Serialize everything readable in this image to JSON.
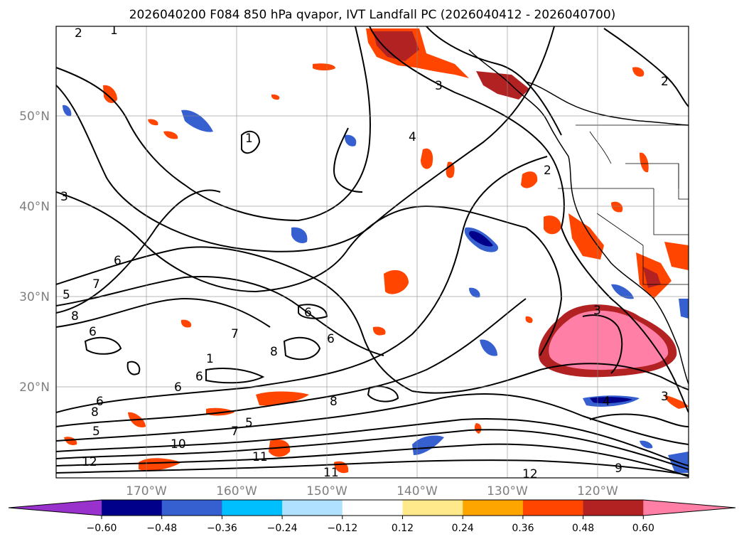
{
  "title": "2026040200 F084 850 hPa qvapor, IVT Landfall PC (2026040412 - 2026040700)",
  "latitudes": [
    "50°N",
    "40°N",
    "30°N",
    "20°N"
  ],
  "longitudes": [
    "170°W",
    "160°W",
    "150°W",
    "140°W",
    "130°W",
    "120°W"
  ],
  "colorbar": {
    "ticks": [
      "−0.60",
      "−0.48",
      "−0.36",
      "−0.24",
      "−0.12",
      "0.12",
      "0.24",
      "0.36",
      "0.48",
      "0.60"
    ],
    "colors": [
      "#9932cc",
      "#00008b",
      "#3660d0",
      "#00bfff",
      "#b0e2ff",
      "#ffffff",
      "#ffe98a",
      "#ffa500",
      "#ff4500",
      "#b22222",
      "#ff7fa6"
    ]
  },
  "contour_labels": [
    "2",
    "1",
    "1",
    "3",
    "4",
    "2",
    "3",
    "2",
    "5",
    "7",
    "8",
    "6",
    "6",
    "6",
    "7",
    "8",
    "6",
    "6",
    "1",
    "6",
    "8",
    "5",
    "6",
    "7",
    "5",
    "10",
    "12",
    "11",
    "11",
    "8",
    "3",
    "4",
    "3",
    "12",
    "9"
  ]
}
